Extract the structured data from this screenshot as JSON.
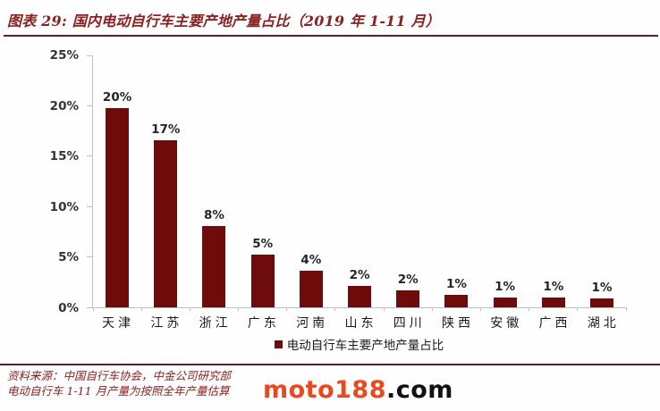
{
  "header": {
    "title": "图表 29: 国内电动自行车主要产地产量占比（2019 年 1-11 月）"
  },
  "chart_data": {
    "type": "bar",
    "title": "国内电动自行车主要产地产量占比（2019 年 1-11 月）",
    "categories": [
      "天津",
      "江苏",
      "浙江",
      "广东",
      "河南",
      "山东",
      "四川",
      "陕西",
      "安徽",
      "广西",
      "湖北"
    ],
    "values": [
      19.8,
      16.6,
      8.1,
      5.2,
      3.6,
      2.1,
      1.7,
      1.2,
      1.0,
      1.0,
      0.9
    ],
    "data_labels": [
      "20%",
      "17%",
      "8%",
      "5%",
      "4%",
      "2%",
      "2%",
      "1%",
      "1%",
      "1%",
      "1%"
    ],
    "xlabel": "",
    "ylabel": "",
    "ylim": [
      0,
      25
    ],
    "y_ticks": [
      "25%",
      "20%",
      "15%",
      "10%",
      "5%",
      "0%"
    ],
    "grid": false,
    "legend": "电动自行车主要产地产量占比",
    "legend_position": "bottom"
  },
  "footer": {
    "source": "资料来源：中国自行车协会，中金公司研究部",
    "note": "电动自行车 1-11 月产量为按照全年产量估算"
  },
  "watermark": {
    "brand": "moto188",
    "tld": ".com"
  },
  "colors": {
    "bar": "#6e0c0c",
    "title_red": "#8b2020",
    "separator_red": "#5d2424",
    "axis_gray": "#bfbfbf",
    "label_dark": "#262626",
    "watermark_brand": "#e8491f",
    "watermark_tld": "#111111"
  }
}
